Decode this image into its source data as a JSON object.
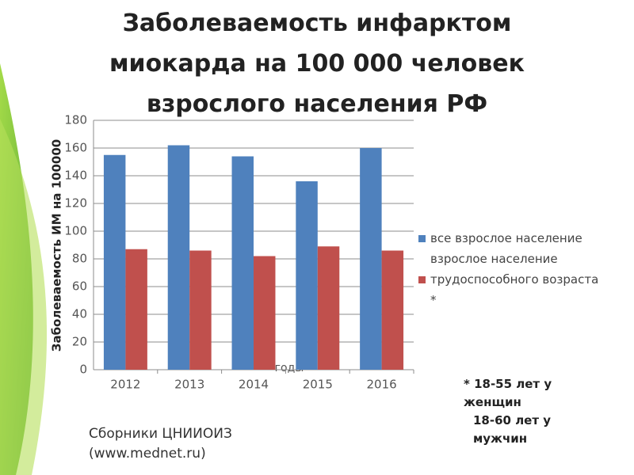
{
  "chart_data": {
    "type": "bar",
    "title": "Заболеваемость инфарктом миокарда на 100 000 человек взрослого населения РФ",
    "y_label": "Заболеваемость ИМ на 100000",
    "x_label": "годы",
    "categories": [
      "2012",
      "2013",
      "2014",
      "2015",
      "2016"
    ],
    "series": [
      {
        "name": "все взрослое население",
        "color": "#4f81bd",
        "values": [
          155,
          162,
          154,
          136,
          160
        ]
      },
      {
        "name": "взрослое население трудоспособного возраста *",
        "color": "#c0504d",
        "values": [
          87,
          86,
          82,
          89,
          86
        ]
      }
    ],
    "ylim": [
      0,
      180
    ],
    "yticks": [
      0,
      20,
      40,
      60,
      80,
      100,
      120,
      140,
      160,
      180
    ],
    "grid": true,
    "footnote": [
      "* 18-55 лет у женщин",
      "18-60 лет у мужчин"
    ],
    "source": [
      "Сборники ЦНИИОИЗ",
      "(www.mednet.ru)"
    ]
  }
}
